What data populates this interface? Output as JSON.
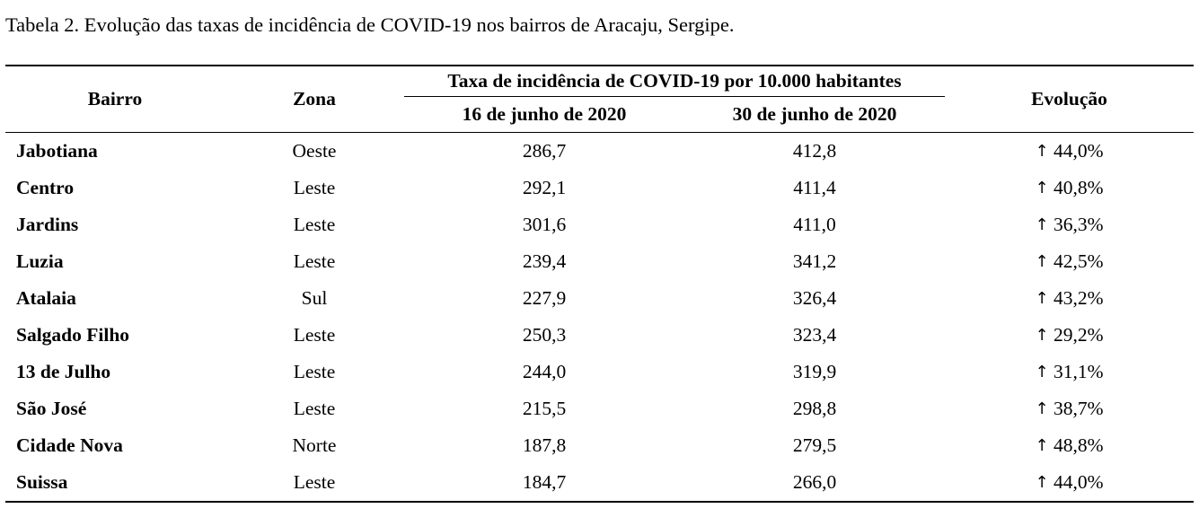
{
  "caption": "Tabela 2. Evolução das taxas de incidência de COVID-19 nos bairros de Aracaju, Sergipe.",
  "header": {
    "bairro": "Bairro",
    "zona": "Zona",
    "group": "Taxa de incidência de COVID-19 por 10.000 habitantes",
    "date1": "16 de junho de 2020",
    "date2": "30 de junho de 2020",
    "evolucao": "Evolução"
  },
  "arrow_glyph": "↑",
  "rows": [
    {
      "bairro": "Jabotiana",
      "zona": "Oeste",
      "d16": "286,7",
      "d30": "412,8",
      "evol": "44,0%"
    },
    {
      "bairro": "Centro",
      "zona": "Leste",
      "d16": "292,1",
      "d30": "411,4",
      "evol": "40,8%"
    },
    {
      "bairro": "Jardins",
      "zona": "Leste",
      "d16": "301,6",
      "d30": "411,0",
      "evol": "36,3%"
    },
    {
      "bairro": "Luzia",
      "zona": "Leste",
      "d16": "239,4",
      "d30": "341,2",
      "evol": "42,5%"
    },
    {
      "bairro": "Atalaia",
      "zona": "Sul",
      "d16": "227,9",
      "d30": "326,4",
      "evol": "43,2%"
    },
    {
      "bairro": "Salgado Filho",
      "zona": "Leste",
      "d16": "250,3",
      "d30": "323,4",
      "evol": "29,2%"
    },
    {
      "bairro": "13 de Julho",
      "zona": "Leste",
      "d16": "244,0",
      "d30": "319,9",
      "evol": "31,1%"
    },
    {
      "bairro": "São José",
      "zona": "Leste",
      "d16": "215,5",
      "d30": "298,8",
      "evol": "38,7%"
    },
    {
      "bairro": "Cidade Nova",
      "zona": "Norte",
      "d16": "187,8",
      "d30": "279,5",
      "evol": "48,8%"
    },
    {
      "bairro": "Suissa",
      "zona": "Leste",
      "d16": "184,7",
      "d30": "266,0",
      "evol": "44,0%"
    }
  ]
}
